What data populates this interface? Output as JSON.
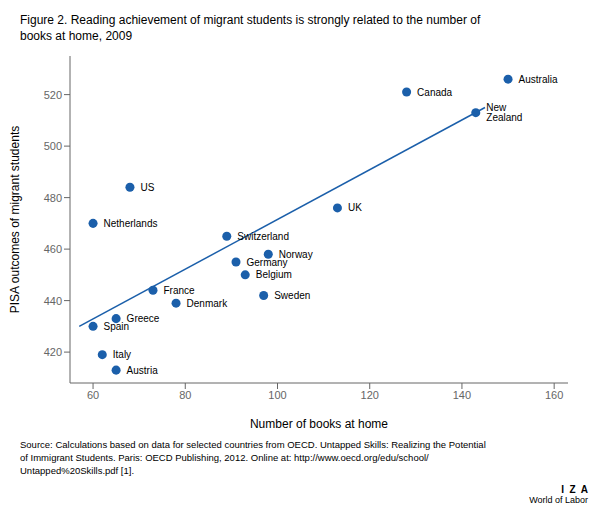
{
  "chart_data": {
    "type": "scatter",
    "title": "Figure 2. Reading achievement of migrant students is strongly related to the number of\nbooks at home, 2009",
    "xlabel": "Number of books at home",
    "ylabel": "PISA outcomes of migrant students",
    "xlim": [
      55,
      163
    ],
    "ylim": [
      408,
      535
    ],
    "xticks": [
      60,
      80,
      100,
      120,
      140,
      160
    ],
    "yticks": [
      420,
      440,
      460,
      480,
      500,
      520
    ],
    "color": "#1b5faa",
    "grid": false,
    "points": [
      {
        "name": "Spain",
        "x": 60,
        "y": 430
      },
      {
        "name": "Italy",
        "x": 62,
        "y": 419
      },
      {
        "name": "Austria",
        "x": 65,
        "y": 413
      },
      {
        "name": "Greece",
        "x": 65,
        "y": 433
      },
      {
        "name": "US",
        "x": 68,
        "y": 484
      },
      {
        "name": "Netherlands",
        "x": 60,
        "y": 470
      },
      {
        "name": "France",
        "x": 73,
        "y": 444
      },
      {
        "name": "Denmark",
        "x": 78,
        "y": 439
      },
      {
        "name": "Switzerland",
        "x": 89,
        "y": 465
      },
      {
        "name": "Germany",
        "x": 91,
        "y": 455
      },
      {
        "name": "Belgium",
        "x": 93,
        "y": 450
      },
      {
        "name": "Sweden",
        "x": 97,
        "y": 442
      },
      {
        "name": "Norway",
        "x": 98,
        "y": 458
      },
      {
        "name": "UK",
        "x": 113,
        "y": 476
      },
      {
        "name": "Canada",
        "x": 128,
        "y": 521
      },
      {
        "name": "New Zealand",
        "x": 143,
        "y": 513
      },
      {
        "name": "Australia",
        "x": 150,
        "y": 526
      }
    ],
    "regression": {
      "x": [
        57,
        145
      ],
      "y": [
        430,
        515
      ]
    },
    "source": [
      "Source: Calculations based on data for selected countries from OECD. Untapped Skills: Realizing the Potential",
      "of Immigrant Students. Paris: OECD Publishing, 2012. Online at: http://www.oecd.org/edu/school/",
      "Untapped%20Skills.pdf [1]."
    ],
    "annotations": [
      "I  Z  A",
      "World of Labor"
    ]
  }
}
